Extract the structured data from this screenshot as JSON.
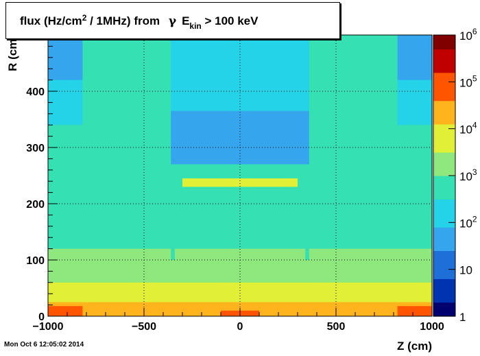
{
  "title": {
    "prefix": "flux (Hz/cm",
    "sup": "2",
    "mid": " / 1MHz) from ",
    "gamma": "γ",
    "e": "E",
    "sub": "kin",
    "suffix": " > 100 keV"
  },
  "timestamp": "Mon Oct  6 12:05:02 2014",
  "chart_data": {
    "type": "heatmap",
    "xlabel": "Z (cm)",
    "ylabel": "R (cm)",
    "xlim": [
      -1000,
      1000
    ],
    "ylim": [
      0,
      500
    ],
    "x_ticks": [
      {
        "value": -1000,
        "label": "−1000"
      },
      {
        "value": -500,
        "label": "−500"
      },
      {
        "value": 0,
        "label": "0"
      },
      {
        "value": 500,
        "label": "500"
      },
      {
        "value": 1000,
        "label": "1000"
      }
    ],
    "y_ticks": [
      {
        "value": 0,
        "label": "0"
      },
      {
        "value": 100,
        "label": "100"
      },
      {
        "value": 200,
        "label": "200"
      },
      {
        "value": 300,
        "label": "300"
      },
      {
        "value": 400,
        "label": "400"
      }
    ],
    "grid": true,
    "z_scale": "log",
    "zlim": [
      1,
      1000000
    ],
    "colorbar_ticks": [
      {
        "base": "1",
        "exp": ""
      },
      {
        "base": "10",
        "exp": ""
      },
      {
        "base": "10",
        "exp": "2"
      },
      {
        "base": "10",
        "exp": "3"
      },
      {
        "base": "10",
        "exp": "4"
      },
      {
        "base": "10",
        "exp": "5"
      },
      {
        "base": "10",
        "exp": "6"
      }
    ],
    "colormap": [
      "#00006e",
      "#0033b0",
      "#1f6fd9",
      "#35a6ee",
      "#24d3e8",
      "#35e0b2",
      "#8fe87e",
      "#e1f037",
      "#ffb31c",
      "#ff5400",
      "#c00000",
      "#800000"
    ],
    "regions": [
      {
        "zmin": -1000,
        "zmax": 1000,
        "rmin": 0,
        "rmax": 500,
        "flux": 500
      },
      {
        "zmin": -1000,
        "zmax": 1000,
        "rmin": 120,
        "rmax": 500,
        "flux": 700
      },
      {
        "zmin": -1000,
        "zmax": 1000,
        "rmin": 60,
        "rmax": 120,
        "flux": 2500
      },
      {
        "zmin": -1000,
        "zmax": 1000,
        "rmin": 25,
        "rmax": 60,
        "flux": 9000
      },
      {
        "zmin": -1000,
        "zmax": 1000,
        "rmin": 0,
        "rmax": 25,
        "flux": 40000
      },
      {
        "zmin": -1000,
        "zmax": -820,
        "rmin": 0,
        "rmax": 18,
        "flux": 150000
      },
      {
        "zmin": 820,
        "zmax": 1000,
        "rmin": 0,
        "rmax": 18,
        "flux": 150000
      },
      {
        "zmin": -100,
        "zmax": 100,
        "rmin": 0,
        "rmax": 10,
        "flux": 80000
      },
      {
        "zmin": -1000,
        "zmax": -820,
        "rmin": 340,
        "rmax": 500,
        "flux": 180
      },
      {
        "zmin": 820,
        "zmax": 1000,
        "rmin": 340,
        "rmax": 500,
        "flux": 180
      },
      {
        "zmin": -1000,
        "zmax": -820,
        "rmin": 420,
        "rmax": 500,
        "flux": 40
      },
      {
        "zmin": 820,
        "zmax": 1000,
        "rmin": 420,
        "rmax": 500,
        "flux": 40
      },
      {
        "zmin": -360,
        "zmax": 360,
        "rmin": 365,
        "rmax": 500,
        "flux": 200
      },
      {
        "zmin": -360,
        "zmax": 360,
        "rmin": 270,
        "rmax": 365,
        "flux": 25
      },
      {
        "zmin": -360,
        "zmax": 360,
        "rmin": 250,
        "rmax": 270,
        "flux": 700
      },
      {
        "zmin": -300,
        "zmax": 300,
        "rmin": 230,
        "rmax": 245,
        "flux": 8000
      },
      {
        "zmin": -360,
        "zmax": -340,
        "rmin": 100,
        "rmax": 250,
        "flux": 300
      },
      {
        "zmin": 340,
        "zmax": 360,
        "rmin": 100,
        "rmax": 250,
        "flux": 300
      }
    ]
  }
}
